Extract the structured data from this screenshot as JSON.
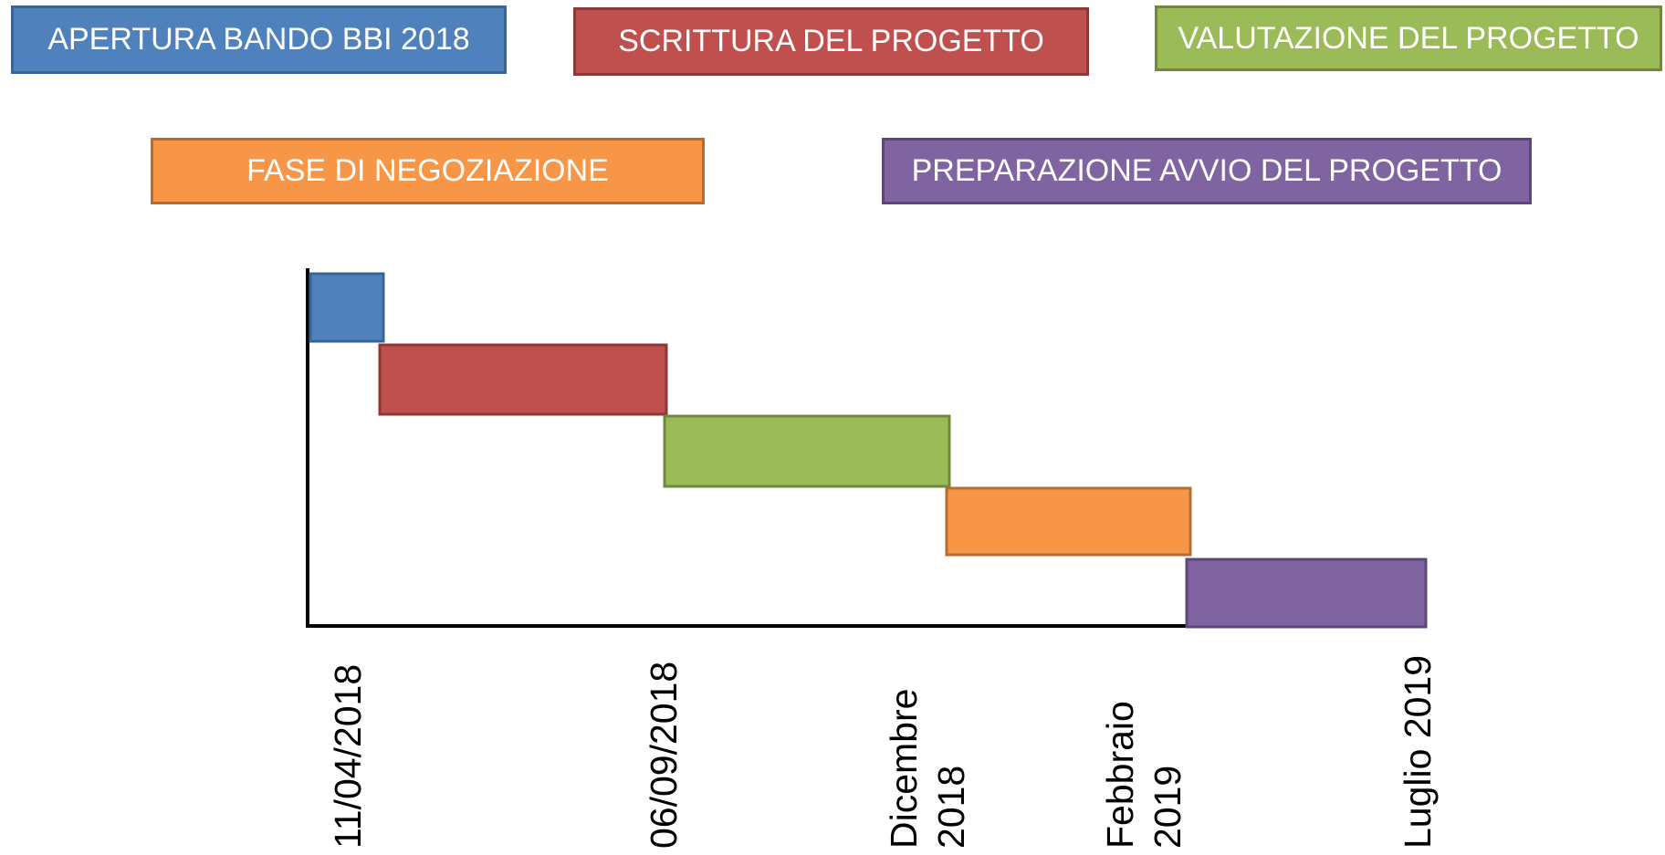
{
  "phases": [
    {
      "label": "APERTURA BANDO BBI 2018",
      "color": "#4f81bd",
      "border": "#3a6494"
    },
    {
      "label": "SCRITTURA DEL PROGETTO",
      "color": "#c0504d",
      "border": "#8c3836"
    },
    {
      "label": "VALUTAZIONE DEL PROGETTO",
      "color": "#9bbb59",
      "border": "#6f8a3c"
    },
    {
      "label": "FASE DI NEGOZIAZIONE",
      "color": "#f79646",
      "border": "#b66d31"
    },
    {
      "label": "PREPARAZIONE AVVIO DEL PROGETTO",
      "color": "#8064a2",
      "border": "#5c4776"
    }
  ],
  "axis_labels": [
    "11/04/2018",
    "06/09/2018",
    "Dicembre 2018",
    "Febbraio 2019",
    "Luglio 2019"
  ]
}
